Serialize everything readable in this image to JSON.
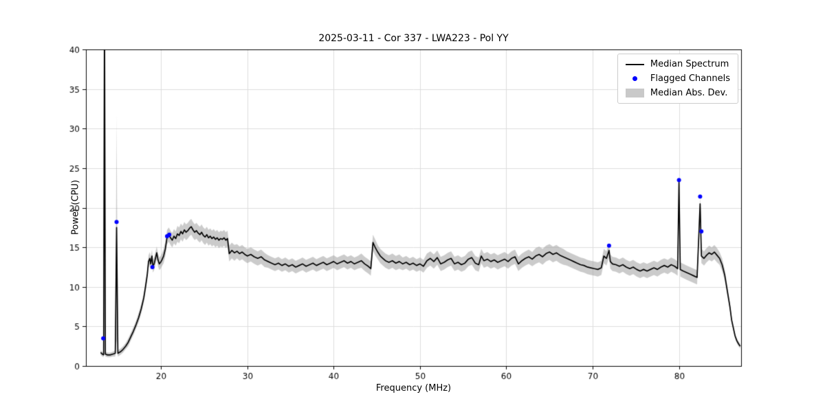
{
  "chart_data": {
    "type": "line",
    "title": "2025-03-11 - Cor 337 - LWA223 - Pol YY",
    "xlabel": "Frequency (MHz)",
    "ylabel": "Power (CPU)",
    "xlim": [
      11.3,
      87.2
    ],
    "ylim": [
      0,
      40
    ],
    "xticks": [
      20,
      30,
      40,
      50,
      60,
      70,
      80
    ],
    "yticks": [
      0,
      5,
      10,
      15,
      20,
      25,
      30,
      35,
      40
    ],
    "grid": true,
    "colors": {
      "line": "#000000",
      "flagged": "#0000ff",
      "band": "rgba(160,160,160,0.55)",
      "grid": "#dcdcdc",
      "axis": "#000000"
    },
    "legend": {
      "position": "upper right",
      "entries": [
        {
          "label": "Median Spectrum",
          "type": "line",
          "color": "#000000"
        },
        {
          "label": "Flagged Channels",
          "type": "marker",
          "color": "#0000ff"
        },
        {
          "label": "Median Abs. Dev.",
          "type": "patch",
          "color": "#c9c9c9"
        }
      ]
    },
    "series": [
      {
        "name": "Median Spectrum",
        "color": "#000000",
        "points": [
          [
            13.0,
            1.7,
            0.3
          ],
          [
            13.2,
            1.5,
            0.3
          ],
          [
            13.35,
            1.4,
            0.3
          ],
          [
            13.45,
            46.0,
            1.0
          ],
          [
            13.55,
            1.5,
            0.3
          ],
          [
            13.8,
            1.4,
            0.3
          ],
          [
            14.1,
            1.4,
            0.3
          ],
          [
            14.4,
            1.5,
            0.3
          ],
          [
            14.7,
            1.6,
            0.4
          ],
          [
            14.85,
            17.5,
            14.2
          ],
          [
            15.0,
            1.6,
            0.4
          ],
          [
            15.3,
            1.8,
            0.4
          ],
          [
            15.6,
            2.1,
            0.4
          ],
          [
            15.9,
            2.5,
            0.4
          ],
          [
            16.2,
            3.0,
            0.5
          ],
          [
            16.5,
            3.7,
            0.5
          ],
          [
            16.8,
            4.4,
            0.5
          ],
          [
            17.1,
            5.2,
            0.5
          ],
          [
            17.4,
            6.1,
            0.6
          ],
          [
            17.7,
            7.2,
            0.6
          ],
          [
            18.0,
            8.6,
            0.6
          ],
          [
            18.2,
            10.0,
            0.7
          ],
          [
            18.4,
            11.5,
            0.7
          ],
          [
            18.55,
            13.2,
            0.8
          ],
          [
            18.7,
            13.6,
            0.8
          ],
          [
            18.8,
            12.9,
            0.8
          ],
          [
            18.95,
            13.9,
            0.8
          ],
          [
            19.05,
            12.6,
            0.8
          ],
          [
            19.2,
            12.9,
            0.8
          ],
          [
            19.35,
            13.6,
            0.8
          ],
          [
            19.5,
            14.3,
            0.8
          ],
          [
            19.65,
            13.4,
            0.8
          ],
          [
            19.8,
            12.9,
            0.8
          ],
          [
            19.95,
            13.1,
            0.8
          ],
          [
            20.1,
            13.4,
            0.8
          ],
          [
            20.3,
            13.9,
            0.9
          ],
          [
            20.5,
            14.8,
            0.9
          ],
          [
            20.7,
            16.3,
            0.9
          ],
          [
            20.9,
            16.6,
            0.9
          ],
          [
            21.1,
            16.2,
            0.9
          ],
          [
            21.3,
            15.9,
            0.9
          ],
          [
            21.5,
            16.4,
            0.9
          ],
          [
            21.7,
            16.1,
            0.9
          ],
          [
            21.9,
            16.7,
            1.0
          ],
          [
            22.1,
            16.5,
            1.0
          ],
          [
            22.3,
            17.0,
            1.0
          ],
          [
            22.5,
            16.7,
            1.0
          ],
          [
            22.7,
            17.2,
            1.0
          ],
          [
            22.9,
            16.9,
            1.0
          ],
          [
            23.1,
            17.1,
            1.0
          ],
          [
            23.3,
            17.4,
            1.0
          ],
          [
            23.5,
            17.6,
            1.0
          ],
          [
            23.7,
            17.2,
            1.0
          ],
          [
            23.9,
            16.9,
            1.0
          ],
          [
            24.1,
            17.1,
            1.0
          ],
          [
            24.3,
            16.8,
            1.0
          ],
          [
            24.5,
            16.6,
            1.0
          ],
          [
            24.7,
            16.9,
            1.0
          ],
          [
            24.9,
            16.5,
            1.0
          ],
          [
            25.1,
            16.3,
            1.0
          ],
          [
            25.3,
            16.6,
            1.0
          ],
          [
            25.5,
            16.2,
            1.0
          ],
          [
            25.7,
            16.4,
            1.0
          ],
          [
            25.9,
            16.1,
            1.0
          ],
          [
            26.1,
            16.3,
            1.0
          ],
          [
            26.3,
            16.0,
            1.0
          ],
          [
            26.5,
            16.2,
            1.0
          ],
          [
            26.7,
            15.9,
            1.0
          ],
          [
            26.9,
            16.1,
            1.0
          ],
          [
            27.1,
            16.0,
            1.0
          ],
          [
            27.3,
            16.2,
            1.0
          ],
          [
            27.5,
            15.9,
            1.0
          ],
          [
            27.7,
            16.1,
            1.0
          ],
          [
            27.9,
            14.2,
            1.0
          ],
          [
            28.2,
            14.6,
            1.0
          ],
          [
            28.5,
            14.3,
            1.0
          ],
          [
            28.8,
            14.5,
            0.9
          ],
          [
            29.1,
            14.2,
            0.9
          ],
          [
            29.4,
            14.4,
            0.9
          ],
          [
            29.7,
            14.1,
            0.9
          ],
          [
            30.0,
            13.9,
            0.9
          ],
          [
            30.4,
            14.1,
            0.9
          ],
          [
            30.8,
            13.8,
            0.9
          ],
          [
            31.2,
            13.6,
            0.9
          ],
          [
            31.6,
            13.8,
            0.9
          ],
          [
            32.0,
            13.4,
            0.9
          ],
          [
            32.4,
            13.2,
            0.8
          ],
          [
            32.8,
            13.0,
            0.8
          ],
          [
            33.2,
            12.8,
            0.8
          ],
          [
            33.6,
            13.0,
            0.8
          ],
          [
            34.0,
            12.7,
            0.8
          ],
          [
            34.4,
            12.9,
            0.8
          ],
          [
            34.8,
            12.6,
            0.8
          ],
          [
            35.2,
            12.8,
            0.8
          ],
          [
            35.6,
            12.5,
            0.8
          ],
          [
            36.0,
            12.7,
            0.8
          ],
          [
            36.4,
            12.9,
            0.8
          ],
          [
            36.8,
            12.6,
            0.8
          ],
          [
            37.2,
            12.8,
            0.8
          ],
          [
            37.6,
            13.0,
            0.8
          ],
          [
            38.0,
            12.7,
            0.8
          ],
          [
            38.4,
            12.9,
            0.8
          ],
          [
            38.8,
            13.1,
            0.8
          ],
          [
            39.2,
            12.8,
            0.8
          ],
          [
            39.6,
            13.0,
            0.8
          ],
          [
            40.0,
            13.2,
            0.8
          ],
          [
            40.4,
            12.9,
            0.8
          ],
          [
            40.8,
            13.1,
            0.8
          ],
          [
            41.2,
            13.3,
            0.8
          ],
          [
            41.6,
            13.0,
            0.8
          ],
          [
            42.0,
            13.2,
            0.8
          ],
          [
            42.4,
            12.9,
            0.8
          ],
          [
            42.8,
            13.1,
            0.8
          ],
          [
            43.2,
            13.3,
            0.9
          ],
          [
            43.6,
            12.9,
            0.9
          ],
          [
            44.0,
            12.6,
            0.9
          ],
          [
            44.3,
            12.3,
            0.9
          ],
          [
            44.55,
            15.6,
            1.0
          ],
          [
            44.8,
            15.0,
            1.0
          ],
          [
            45.1,
            14.4,
            0.9
          ],
          [
            45.4,
            13.9,
            0.9
          ],
          [
            45.7,
            13.6,
            0.9
          ],
          [
            46.0,
            13.3,
            0.9
          ],
          [
            46.4,
            13.1,
            0.9
          ],
          [
            46.8,
            13.3,
            0.9
          ],
          [
            47.2,
            13.0,
            0.9
          ],
          [
            47.6,
            13.2,
            0.9
          ],
          [
            48.0,
            12.9,
            0.8
          ],
          [
            48.4,
            13.1,
            0.8
          ],
          [
            48.8,
            12.8,
            0.8
          ],
          [
            49.2,
            13.0,
            0.8
          ],
          [
            49.6,
            12.7,
            0.8
          ],
          [
            50.0,
            12.9,
            0.8
          ],
          [
            50.4,
            12.6,
            0.8
          ],
          [
            50.8,
            13.3,
            0.9
          ],
          [
            51.2,
            13.6,
            0.9
          ],
          [
            51.6,
            13.2,
            0.9
          ],
          [
            52.0,
            13.7,
            0.9
          ],
          [
            52.4,
            12.9,
            0.9
          ],
          [
            52.8,
            13.1,
            0.9
          ],
          [
            53.2,
            13.4,
            0.9
          ],
          [
            53.6,
            13.6,
            0.9
          ],
          [
            54.0,
            12.9,
            0.9
          ],
          [
            54.4,
            13.1,
            0.9
          ],
          [
            54.8,
            12.8,
            0.9
          ],
          [
            55.2,
            13.0,
            0.9
          ],
          [
            55.6,
            13.5,
            0.9
          ],
          [
            56.0,
            13.7,
            0.9
          ],
          [
            56.4,
            13.0,
            0.9
          ],
          [
            56.8,
            12.8,
            0.9
          ],
          [
            57.1,
            13.9,
            0.9
          ],
          [
            57.4,
            13.3,
            0.9
          ],
          [
            57.8,
            13.5,
            0.9
          ],
          [
            58.2,
            13.2,
            0.9
          ],
          [
            58.6,
            13.4,
            0.9
          ],
          [
            59.0,
            13.1,
            0.9
          ],
          [
            59.4,
            13.3,
            0.9
          ],
          [
            59.8,
            13.5,
            0.9
          ],
          [
            60.2,
            13.2,
            0.9
          ],
          [
            60.6,
            13.6,
            0.9
          ],
          [
            61.0,
            13.8,
            0.9
          ],
          [
            61.4,
            12.9,
            0.9
          ],
          [
            61.8,
            13.3,
            0.9
          ],
          [
            62.2,
            13.6,
            0.9
          ],
          [
            62.6,
            13.8,
            0.9
          ],
          [
            63.0,
            13.5,
            0.9
          ],
          [
            63.4,
            13.9,
            1.0
          ],
          [
            63.8,
            14.1,
            1.0
          ],
          [
            64.2,
            13.8,
            1.0
          ],
          [
            64.6,
            14.2,
            1.0
          ],
          [
            65.0,
            14.4,
            1.0
          ],
          [
            65.4,
            14.1,
            1.0
          ],
          [
            65.8,
            14.3,
            1.0
          ],
          [
            66.2,
            14.0,
            1.0
          ],
          [
            66.6,
            13.8,
            1.0
          ],
          [
            67.0,
            13.6,
            0.9
          ],
          [
            67.4,
            13.4,
            0.9
          ],
          [
            67.8,
            13.2,
            0.9
          ],
          [
            68.2,
            13.0,
            0.9
          ],
          [
            68.6,
            12.8,
            0.9
          ],
          [
            69.0,
            12.7,
            0.9
          ],
          [
            69.4,
            12.5,
            0.9
          ],
          [
            69.8,
            12.4,
            0.9
          ],
          [
            70.2,
            12.3,
            0.9
          ],
          [
            70.6,
            12.2,
            0.9
          ],
          [
            71.0,
            12.4,
            0.9
          ],
          [
            71.3,
            13.9,
            0.9
          ],
          [
            71.6,
            13.6,
            0.9
          ],
          [
            71.9,
            14.6,
            0.9
          ],
          [
            72.05,
            13.2,
            0.9
          ],
          [
            72.3,
            12.9,
            0.9
          ],
          [
            72.7,
            12.8,
            0.9
          ],
          [
            73.1,
            12.6,
            0.9
          ],
          [
            73.5,
            12.8,
            0.9
          ],
          [
            73.9,
            12.5,
            0.9
          ],
          [
            74.3,
            12.3,
            0.9
          ],
          [
            74.7,
            12.5,
            0.9
          ],
          [
            75.1,
            12.2,
            0.9
          ],
          [
            75.5,
            12.0,
            0.9
          ],
          [
            75.9,
            12.2,
            0.9
          ],
          [
            76.3,
            12.0,
            0.9
          ],
          [
            76.7,
            12.2,
            0.9
          ],
          [
            77.1,
            12.4,
            0.9
          ],
          [
            77.5,
            12.2,
            0.9
          ],
          [
            77.9,
            12.5,
            0.9
          ],
          [
            78.3,
            12.7,
            0.9
          ],
          [
            78.7,
            12.5,
            0.9
          ],
          [
            79.1,
            12.8,
            0.9
          ],
          [
            79.5,
            12.6,
            0.9
          ],
          [
            79.85,
            12.3,
            0.9
          ],
          [
            80.0,
            23.2,
            1.0
          ],
          [
            80.15,
            12.2,
            0.9
          ],
          [
            80.5,
            12.0,
            0.9
          ],
          [
            80.9,
            11.8,
            0.9
          ],
          [
            81.3,
            11.6,
            0.9
          ],
          [
            81.7,
            11.4,
            0.9
          ],
          [
            82.1,
            11.2,
            0.9
          ],
          [
            82.45,
            20.5,
            1.0
          ],
          [
            82.6,
            13.9,
            0.9
          ],
          [
            82.9,
            13.6,
            0.9
          ],
          [
            83.2,
            14.0,
            0.9
          ],
          [
            83.5,
            14.3,
            0.9
          ],
          [
            83.8,
            14.1,
            0.9
          ],
          [
            84.1,
            14.4,
            0.9
          ],
          [
            84.4,
            14.0,
            0.9
          ],
          [
            84.7,
            13.6,
            0.8
          ],
          [
            85.0,
            12.8,
            0.8
          ],
          [
            85.3,
            11.5,
            0.7
          ],
          [
            85.6,
            9.5,
            0.6
          ],
          [
            85.9,
            7.5,
            0.5
          ],
          [
            86.1,
            5.8,
            0.4
          ],
          [
            86.3,
            4.8,
            0.4
          ],
          [
            86.5,
            3.8,
            0.3
          ],
          [
            86.7,
            3.2,
            0.3
          ],
          [
            86.9,
            2.8,
            0.3
          ],
          [
            87.1,
            2.5,
            0.3
          ]
        ]
      }
    ],
    "flagged_channels": {
      "color": "#0000ff",
      "points": [
        [
          13.3,
          3.5
        ],
        [
          14.85,
          18.2
        ],
        [
          19.0,
          12.5
        ],
        [
          20.7,
          16.4
        ],
        [
          20.95,
          16.6
        ],
        [
          71.9,
          15.2
        ],
        [
          80.0,
          23.5
        ],
        [
          82.45,
          21.4
        ],
        [
          82.6,
          17.0
        ]
      ]
    }
  }
}
